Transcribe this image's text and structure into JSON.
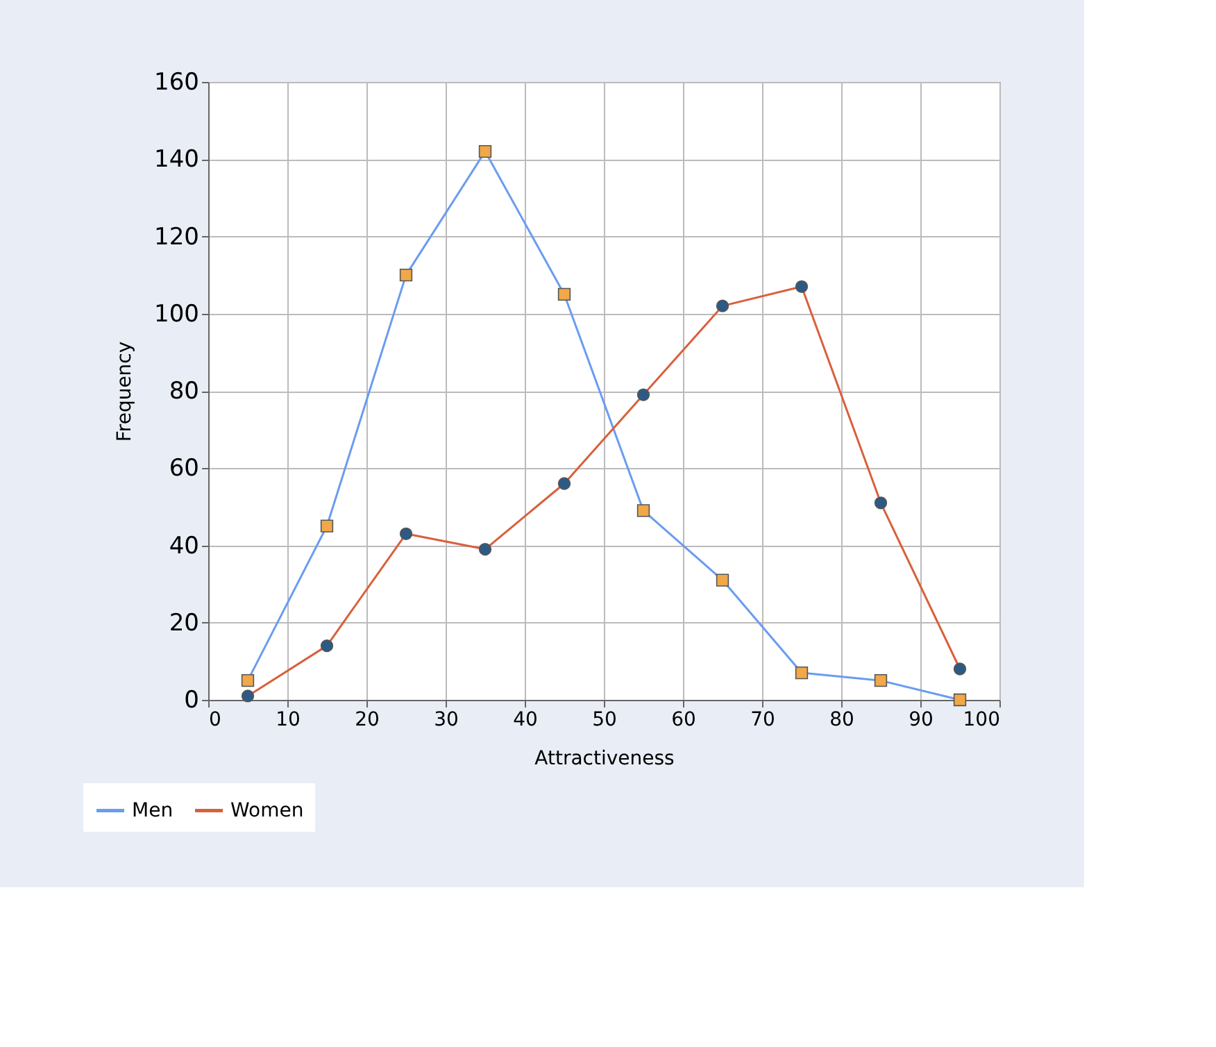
{
  "chart_data": {
    "type": "line",
    "xlabel": "Attractiveness",
    "ylabel": "Frequency",
    "x": [
      5,
      15,
      25,
      35,
      45,
      55,
      65,
      75,
      85,
      95
    ],
    "series": [
      {
        "name": "Men",
        "color": "#6a9cf0",
        "marker": "square",
        "values": [
          5,
          45,
          110,
          142,
          105,
          49,
          31,
          7,
          5,
          0
        ]
      },
      {
        "name": "Women",
        "color": "#d9603b",
        "marker": "circle",
        "values": [
          1,
          14,
          43,
          39,
          56,
          79,
          102,
          107,
          51,
          8
        ]
      }
    ],
    "xlim": [
      0,
      100
    ],
    "xticks": [
      0,
      10,
      20,
      30,
      40,
      50,
      60,
      70,
      80,
      90,
      100
    ],
    "ylim": [
      0,
      160
    ],
    "yticks": [
      0,
      20,
      40,
      60,
      80,
      100,
      120,
      140,
      160
    ],
    "grid": true,
    "legend": "bottom left"
  }
}
